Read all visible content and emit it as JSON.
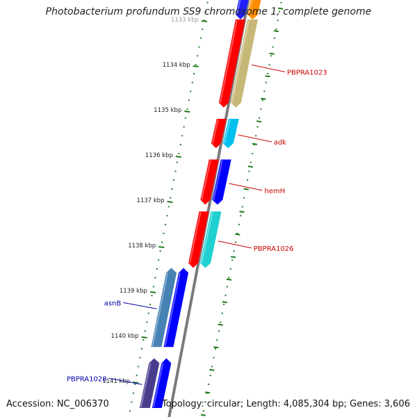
{
  "title": "Photobacterium profundum SS9 chromosome 1, complete genome",
  "accession": "Accession: NC_006370",
  "topology": "Topology: circular; Length: 4,085,304 bp; Genes: 3,606",
  "colors": {
    "backbone": "#7a7a7a",
    "tick": "#1f7a1f",
    "tick_label": "#222222",
    "forward_label": "#cc0000",
    "reverse_label": "#0000aa"
  },
  "ticks": [
    "1133 kbp",
    "1134 kbp",
    "1135 kbp",
    "1136 kbp",
    "1137 kbp",
    "1138 kbp",
    "1139 kbp",
    "1140 kbp",
    "1141 kbp"
  ],
  "genes": [
    {
      "label": "",
      "strand": "+",
      "start_kbp": 1132.0,
      "end_kbp": 1133.0,
      "inner_color": "#2020ff",
      "outer_color": "#ff8c00"
    },
    {
      "label": "PBPRA1023",
      "strand": "+",
      "start_kbp": 1133.0,
      "end_kbp": 1134.95,
      "inner_color": "#ff0000",
      "outer_color": "#c8b878"
    },
    {
      "label": "adk",
      "strand": "+",
      "start_kbp": 1135.2,
      "end_kbp": 1135.85,
      "inner_color": "#ff0000",
      "outer_color": "#00c0f0"
    },
    {
      "label": "hemH",
      "strand": "+",
      "start_kbp": 1136.1,
      "end_kbp": 1137.1,
      "inner_color": "#ff0000",
      "outer_color": "#0000ff"
    },
    {
      "label": "PBPRA1026",
      "strand": "+",
      "start_kbp": 1137.25,
      "end_kbp": 1138.5,
      "inner_color": "#ff0000",
      "outer_color": "#20d0d0"
    },
    {
      "label": "asnB",
      "strand": "-",
      "start_kbp": 1138.5,
      "end_kbp": 1140.25,
      "inner_color": "#0000ff",
      "outer_color": "#4682b4"
    },
    {
      "label": "PBPRA1028",
      "strand": "-",
      "start_kbp": 1140.5,
      "end_kbp": 1141.6,
      "inner_color": "#0000ff",
      "outer_color": "#483d8b"
    }
  ]
}
